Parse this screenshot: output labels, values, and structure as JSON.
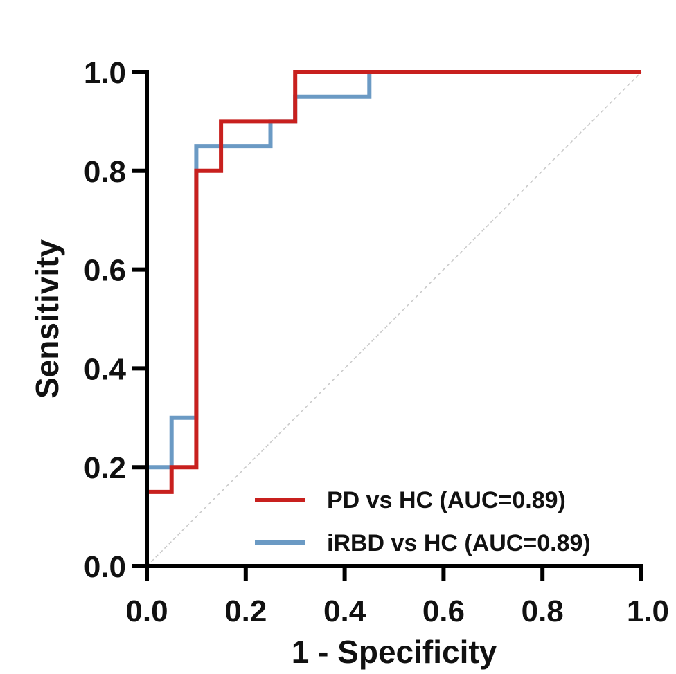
{
  "chart_data": {
    "type": "line",
    "title": "",
    "xlabel": "1 - Specificity",
    "ylabel": "Sensitivity",
    "xlim": [
      0,
      1
    ],
    "ylim": [
      0,
      1
    ],
    "x_ticks": [
      "0.0",
      "0.2",
      "0.4",
      "0.6",
      "0.8",
      "1.0"
    ],
    "y_ticks": [
      "0.0",
      "0.2",
      "0.4",
      "0.6",
      "0.8",
      "1.0"
    ],
    "grid": false,
    "legend_position": "bottom-right",
    "reference_line": {
      "x": [
        0,
        1
      ],
      "y": [
        0,
        1
      ],
      "style": "dashed",
      "color": "#c8c8c8"
    },
    "series": [
      {
        "name": "iRBD vs HC (AUC=0.89)",
        "color": "#6b9ac4",
        "x": [
          0,
          0,
          0.05,
          0.05,
          0.1,
          0.1,
          0.25,
          0.25,
          0.3,
          0.3,
          0.45,
          0.45,
          1.0
        ],
        "y": [
          0,
          0.2,
          0.2,
          0.3,
          0.3,
          0.85,
          0.85,
          0.9,
          0.9,
          0.95,
          0.95,
          1.0,
          1.0
        ]
      },
      {
        "name": "PD vs HC (AUC=0.89)",
        "color": "#c8201e",
        "x": [
          0,
          0,
          0.05,
          0.05,
          0.1,
          0.1,
          0.15,
          0.15,
          0.3,
          0.3,
          1.0
        ],
        "y": [
          0,
          0.15,
          0.15,
          0.2,
          0.2,
          0.8,
          0.8,
          0.9,
          0.9,
          1.0,
          1.0
        ]
      }
    ],
    "legend_order": [
      1,
      0
    ]
  }
}
